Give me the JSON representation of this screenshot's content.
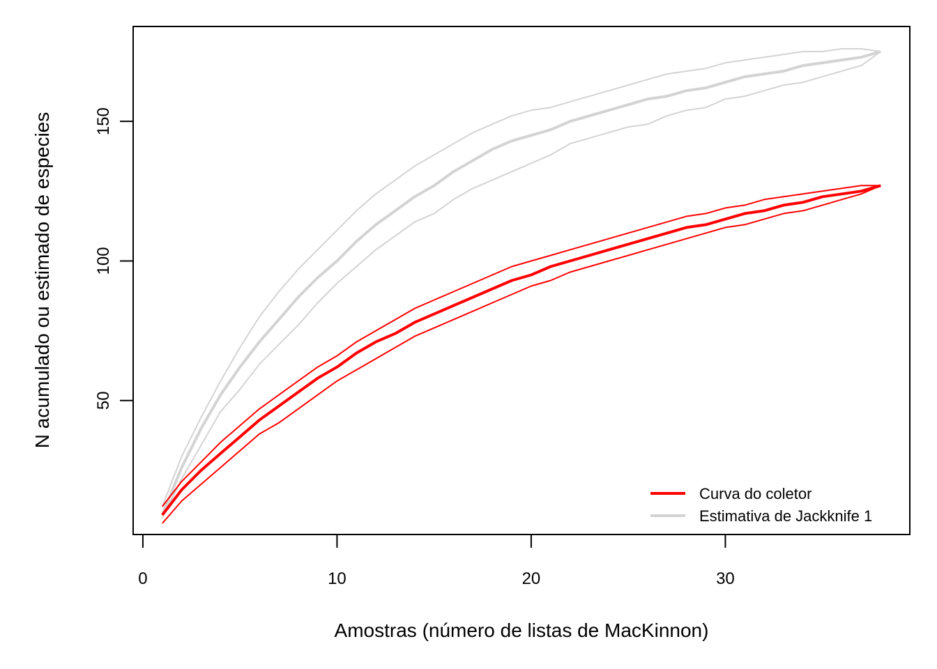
{
  "chart_data": {
    "type": "line",
    "xlabel": "Amostras (número de listas de MacKinnon)",
    "ylabel": "N acumulado ou estimado de especies",
    "xlim": [
      -0.5,
      39.5
    ],
    "ylim": [
      2,
      184
    ],
    "xticks": [
      0,
      10,
      20,
      30
    ],
    "yticks": [
      50,
      100,
      150
    ],
    "grid": false,
    "legend": {
      "position": "bottom-right",
      "box": false
    },
    "x": [
      1,
      2,
      3,
      4,
      5,
      6,
      7,
      8,
      9,
      10,
      11,
      12,
      13,
      14,
      15,
      16,
      17,
      18,
      19,
      20,
      21,
      22,
      23,
      24,
      25,
      26,
      27,
      28,
      29,
      30,
      31,
      32,
      33,
      34,
      35,
      36,
      37,
      38
    ],
    "series": [
      {
        "name": "Curva do coletor",
        "legend": true,
        "color": "#ff0000",
        "role": "mean",
        "values": [
          9,
          18,
          25,
          31,
          37,
          43,
          48,
          53,
          58,
          62,
          67,
          71,
          74,
          78,
          81,
          84,
          87,
          90,
          93,
          95,
          98,
          100,
          102,
          104,
          106,
          108,
          110,
          112,
          113,
          115,
          117,
          118,
          120,
          121,
          123,
          124,
          125,
          127
        ]
      },
      {
        "legend": false,
        "color": "#ff0000",
        "role": "upper",
        "values": [
          12,
          21,
          28,
          35,
          41,
          47,
          52,
          57,
          62,
          66,
          71,
          75,
          79,
          83,
          86,
          89,
          92,
          95,
          98,
          100,
          102,
          104,
          106,
          108,
          110,
          112,
          114,
          116,
          117,
          119,
          120,
          122,
          123,
          124,
          125,
          126,
          127,
          127
        ]
      },
      {
        "legend": false,
        "color": "#ff0000",
        "role": "lower",
        "values": [
          6,
          14,
          20,
          26,
          32,
          38,
          42,
          47,
          52,
          57,
          61,
          65,
          69,
          73,
          76,
          79,
          82,
          85,
          88,
          91,
          93,
          96,
          98,
          100,
          102,
          104,
          106,
          108,
          110,
          112,
          113,
          115,
          117,
          118,
          120,
          122,
          124,
          127
        ]
      },
      {
        "name": "Estimativa de Jackknife 1",
        "legend": true,
        "color": "#d3d3d3",
        "role": "mean",
        "values": [
          9,
          26,
          40,
          52,
          62,
          71,
          79,
          87,
          94,
          100,
          107,
          113,
          118,
          123,
          127,
          132,
          136,
          140,
          143,
          145,
          147,
          150,
          152,
          154,
          156,
          158,
          159,
          161,
          162,
          164,
          166,
          167,
          168,
          170,
          171,
          172,
          173,
          175
        ]
      },
      {
        "legend": false,
        "color": "#d3d3d3",
        "role": "upper",
        "values": [
          12,
          30,
          44,
          57,
          69,
          80,
          89,
          97,
          104,
          111,
          118,
          124,
          129,
          134,
          138,
          142,
          146,
          149,
          152,
          154,
          155,
          157,
          159,
          161,
          163,
          165,
          167,
          168,
          169,
          171,
          172,
          173,
          174,
          175,
          175,
          176,
          176,
          175
        ]
      },
      {
        "legend": false,
        "color": "#d3d3d3",
        "role": "lower",
        "values": [
          8,
          22,
          34,
          46,
          54,
          63,
          70,
          77,
          85,
          92,
          98,
          104,
          109,
          114,
          117,
          122,
          126,
          129,
          132,
          135,
          138,
          142,
          144,
          146,
          148,
          149,
          152,
          154,
          155,
          158,
          159,
          161,
          163,
          164,
          166,
          168,
          170,
          175
        ]
      }
    ]
  }
}
